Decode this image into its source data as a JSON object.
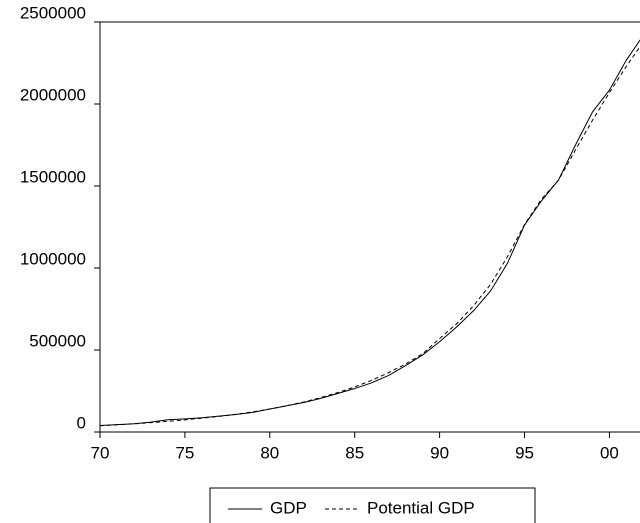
{
  "chart_data": {
    "type": "line",
    "x": [
      1970,
      1971,
      1972,
      1973,
      1974,
      1975,
      1976,
      1977,
      1978,
      1979,
      1980,
      1981,
      1982,
      1983,
      1984,
      1985,
      1986,
      1987,
      1988,
      1989,
      1990,
      1991,
      1992,
      1993,
      1994,
      1995,
      1996,
      1997,
      1998,
      1999,
      2000,
      2001,
      2002
    ],
    "series": [
      {
        "name": "GDP",
        "color": "#000000",
        "dash": "solid",
        "values": [
          40000,
          45000,
          50000,
          60000,
          75000,
          80000,
          87000,
          97000,
          107000,
          120000,
          140000,
          160000,
          180000,
          205000,
          235000,
          265000,
          300000,
          345000,
          405000,
          470000,
          550000,
          640000,
          740000,
          860000,
          1030000,
          1262000,
          1410000,
          1537000,
          1750000,
          1951000,
          2085000,
          2268000,
          2420000
        ]
      },
      {
        "name": "Potential GDP",
        "color": "#000000",
        "dash": "dashed",
        "values": [
          38000,
          44000,
          50000,
          57000,
          65000,
          74000,
          84000,
          95000,
          108000,
          123000,
          140000,
          160000,
          183000,
          210000,
          240000,
          275000,
          315000,
          362000,
          415000,
          477000,
          570000,
          660000,
          770000,
          900000,
          1070000,
          1265000,
          1420000,
          1535000,
          1720000,
          1900000,
          2070000,
          2230000,
          2380000
        ]
      }
    ],
    "xlim": [
      1970,
      2001.8
    ],
    "xticks": [
      {
        "value": 1970,
        "label": "70"
      },
      {
        "value": 1975,
        "label": "75"
      },
      {
        "value": 1980,
        "label": "80"
      },
      {
        "value": 1985,
        "label": "85"
      },
      {
        "value": 1990,
        "label": "90"
      },
      {
        "value": 1995,
        "label": "95"
      },
      {
        "value": 2000,
        "label": "00"
      }
    ],
    "ylim": [
      0,
      2500000
    ],
    "yticks": [
      0,
      500000,
      1000000,
      1500000,
      2000000,
      2500000
    ]
  }
}
